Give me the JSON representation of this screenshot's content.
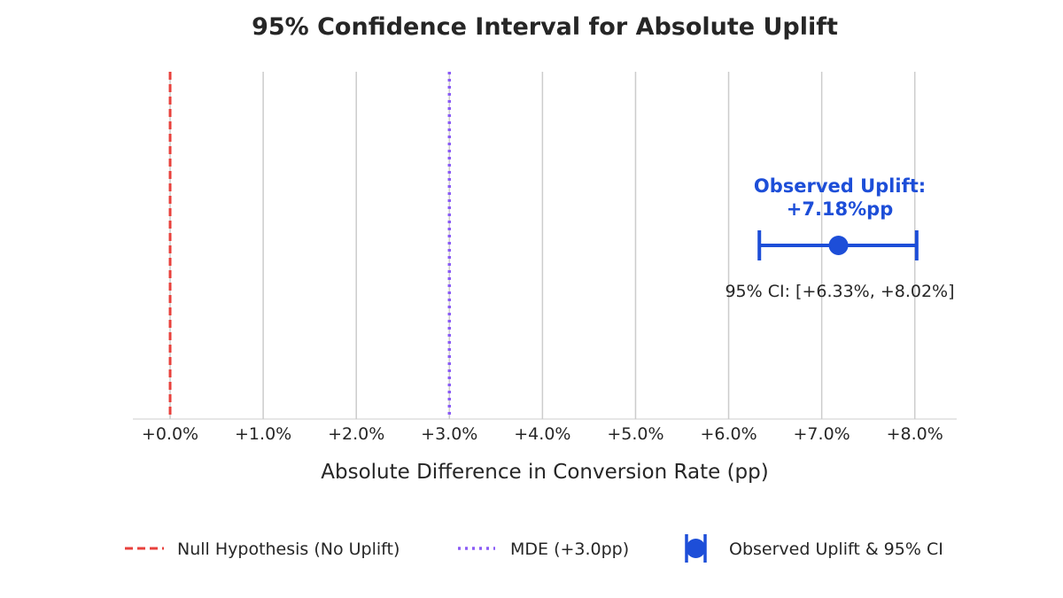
{
  "chart_data": {
    "type": "errorbar",
    "title": "95% Confidence Interval for Absolute Uplift",
    "xlabel": "Absolute Difference in Conversion Rate (pp)",
    "ylabel": "",
    "xlim": [
      -0.4,
      8.45
    ],
    "x_ticks": [
      0,
      1,
      2,
      3,
      4,
      5,
      6,
      7,
      8
    ],
    "x_tick_labels": [
      "+0.0%",
      "+1.0%",
      "+2.0%",
      "+3.0%",
      "+4.0%",
      "+5.0%",
      "+6.0%",
      "+7.0%",
      "+8.0%"
    ],
    "grid": "vertical",
    "reference_lines": [
      {
        "name": "Null Hypothesis (No Uplift)",
        "x": 0.0,
        "style": "dashed",
        "color": "#e8413c"
      },
      {
        "name": "MDE (+3.0pp)",
        "x": 3.0,
        "style": "dotted",
        "color": "#8b5cf6"
      }
    ],
    "series": [
      {
        "name": "Observed Uplift & 95% CI",
        "point": 7.18,
        "ci_low": 6.33,
        "ci_high": 8.02,
        "color": "#1d4ed8"
      }
    ],
    "annotations": {
      "point_label_line1": "Observed Uplift:",
      "point_label_line2": "+7.18%pp",
      "ci_label": "95% CI: [+6.33%, +8.02%]"
    },
    "legend": {
      "position": "bottom",
      "entries": [
        {
          "label": "Null Hypothesis (No Uplift)",
          "symbol": "dashed-line",
          "color": "#e8413c"
        },
        {
          "label": "MDE (+3.0pp)",
          "symbol": "dotted-line",
          "color": "#8b5cf6"
        },
        {
          "label": "Observed Uplift & 95% CI",
          "symbol": "errorbar-marker",
          "color": "#1d4ed8"
        }
      ]
    }
  }
}
